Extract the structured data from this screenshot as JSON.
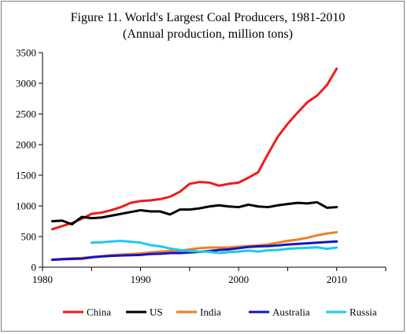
{
  "chart_data": {
    "type": "line",
    "title": "Figure 11. World's Largest Coal Producers, 1981-2010",
    "subtitle": "(Annual production, million tons)",
    "xlim": [
      1980,
      2015
    ],
    "ylim": [
      0,
      3500
    ],
    "x_ticks": [
      1980,
      1990,
      2000,
      2010
    ],
    "y_ticks": [
      0,
      500,
      1000,
      1500,
      2000,
      2500,
      3000,
      3500
    ],
    "x_tick_labels": [
      "1980",
      "1990",
      "2000",
      "2010"
    ],
    "y_tick_labels": [
      "0",
      "500",
      "1000",
      "1500",
      "2000",
      "2500",
      "3000",
      "3500"
    ],
    "grid": false,
    "legend_position": "bottom",
    "series": [
      {
        "name": "China",
        "color": "#ee1c1c",
        "x": [
          1981,
          1982,
          1983,
          1984,
          1985,
          1986,
          1987,
          1988,
          1989,
          1990,
          1991,
          1992,
          1993,
          1994,
          1995,
          1996,
          1997,
          1998,
          1999,
          2000,
          2001,
          2002,
          2003,
          2004,
          2005,
          2006,
          2007,
          2008,
          2009,
          2010
        ],
        "values": [
          620,
          670,
          720,
          790,
          870,
          890,
          930,
          980,
          1050,
          1080,
          1090,
          1110,
          1150,
          1230,
          1360,
          1390,
          1380,
          1330,
          1360,
          1380,
          1460,
          1550,
          1850,
          2130,
          2340,
          2520,
          2690,
          2800,
          2970,
          3240
        ]
      },
      {
        "name": "US",
        "color": "#000000",
        "x": [
          1981,
          1982,
          1983,
          1984,
          1985,
          1986,
          1987,
          1988,
          1989,
          1990,
          1991,
          1992,
          1993,
          1994,
          1995,
          1996,
          1997,
          1998,
          1999,
          2000,
          2001,
          2002,
          2003,
          2004,
          2005,
          2006,
          2007,
          2008,
          2009,
          2010
        ],
        "values": [
          750,
          760,
          700,
          820,
          800,
          810,
          840,
          870,
          900,
          930,
          910,
          910,
          860,
          940,
          940,
          960,
          990,
          1010,
          990,
          980,
          1020,
          990,
          980,
          1010,
          1030,
          1050,
          1040,
          1060,
          970,
          980
        ]
      },
      {
        "name": "India",
        "color": "#f07f1c",
        "x": [
          1981,
          1982,
          1983,
          1984,
          1985,
          1986,
          1987,
          1988,
          1989,
          1990,
          1991,
          1992,
          1993,
          1994,
          1995,
          1996,
          1997,
          1998,
          1999,
          2000,
          2001,
          2002,
          2003,
          2004,
          2005,
          2006,
          2007,
          2008,
          2009,
          2010
        ],
        "values": [
          125,
          135,
          145,
          150,
          165,
          180,
          195,
          205,
          215,
          225,
          240,
          255,
          265,
          270,
          290,
          310,
          320,
          320,
          320,
          335,
          345,
          355,
          370,
          400,
          430,
          450,
          480,
          520,
          550,
          570
        ]
      },
      {
        "name": "Australia",
        "color": "#1414c8",
        "x": [
          1981,
          1982,
          1983,
          1984,
          1985,
          1986,
          1987,
          1988,
          1989,
          1990,
          1991,
          1992,
          1993,
          1994,
          1995,
          1996,
          1997,
          1998,
          1999,
          2000,
          2001,
          2002,
          2003,
          2004,
          2005,
          2006,
          2007,
          2008,
          2009,
          2010
        ],
        "values": [
          120,
          130,
          135,
          140,
          160,
          175,
          185,
          190,
          195,
          200,
          215,
          220,
          230,
          230,
          240,
          250,
          265,
          280,
          290,
          310,
          330,
          340,
          345,
          355,
          370,
          380,
          390,
          400,
          410,
          420
        ]
      },
      {
        "name": "Russia",
        "color": "#1ec8f0",
        "x": [
          1985,
          1986,
          1987,
          1988,
          1989,
          1990,
          1991,
          1992,
          1993,
          1994,
          1995,
          1996,
          1997,
          1998,
          1999,
          2000,
          2001,
          2002,
          2003,
          2004,
          2005,
          2006,
          2007,
          2008,
          2009,
          2010
        ],
        "values": [
          400,
          405,
          420,
          430,
          415,
          400,
          360,
          340,
          305,
          280,
          265,
          255,
          250,
          230,
          245,
          255,
          270,
          255,
          275,
          280,
          300,
          310,
          315,
          325,
          300,
          320
        ]
      }
    ]
  }
}
